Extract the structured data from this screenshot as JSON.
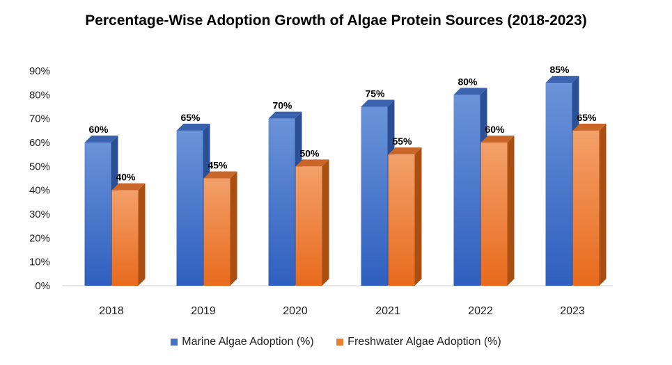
{
  "chart_data": {
    "type": "bar",
    "title": "Percentage-Wise Adoption Growth of Algae Protein Sources (2018-2023)",
    "categories": [
      "2018",
      "2019",
      "2020",
      "2021",
      "2022",
      "2023"
    ],
    "series": [
      {
        "name": "Marine Algae Adoption (%)",
        "values": [
          60,
          65,
          70,
          75,
          80,
          85
        ],
        "labels": [
          "60%",
          "65%",
          "70%",
          "75%",
          "80%",
          "85%"
        ],
        "color": "#4472C4"
      },
      {
        "name": "Freshwater Algae Adoption (%)",
        "values": [
          40,
          45,
          50,
          55,
          60,
          65
        ],
        "labels": [
          "40%",
          "45%",
          "50%",
          "55%",
          "60%",
          "65%"
        ],
        "color": "#ED7D31"
      }
    ],
    "y_ticks": [
      "0%",
      "10%",
      "20%",
      "30%",
      "40%",
      "50%",
      "60%",
      "70%",
      "80%",
      "90%"
    ],
    "ylim": [
      0,
      90
    ],
    "grid": false,
    "legend_position": "bottom",
    "style": "3d-column"
  }
}
